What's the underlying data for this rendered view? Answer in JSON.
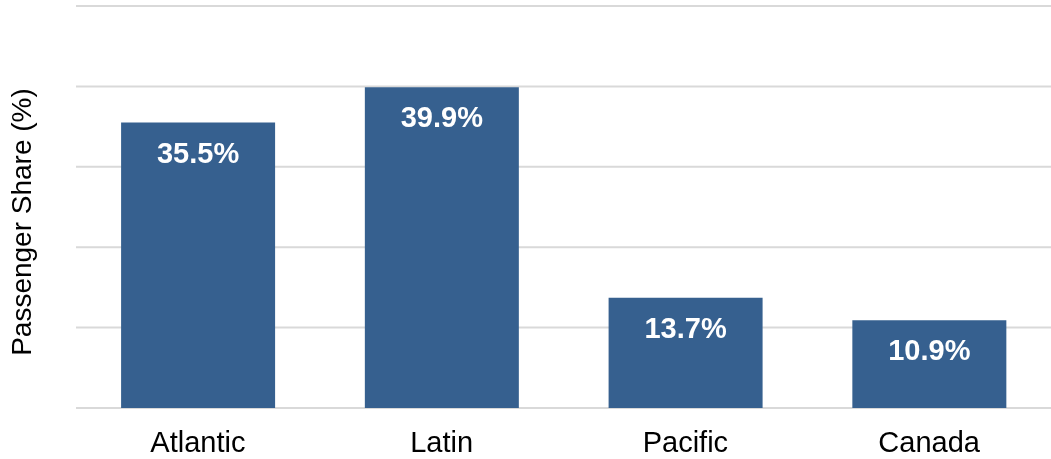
{
  "chart_data": {
    "type": "bar",
    "ylabel": "Passenger Share (%)",
    "categories": [
      "Atlantic",
      "Latin",
      "Pacific",
      "Canada"
    ],
    "values": [
      35.5,
      39.9,
      13.7,
      10.9
    ],
    "value_labels": [
      "35.5%",
      "39.9%",
      "13.7%",
      "10.9%"
    ],
    "color": "#36608f",
    "ylim": [
      0,
      50
    ],
    "yticks": [
      {
        "value": 0,
        "label": null
      },
      {
        "value": 10,
        "label": null
      },
      {
        "value": 20,
        "label": null
      },
      {
        "value": 30,
        "label": null
      },
      {
        "value": 40,
        "label": null
      },
      {
        "value": 50,
        "label": null
      }
    ],
    "grid": "y",
    "tick_labels": "x"
  }
}
